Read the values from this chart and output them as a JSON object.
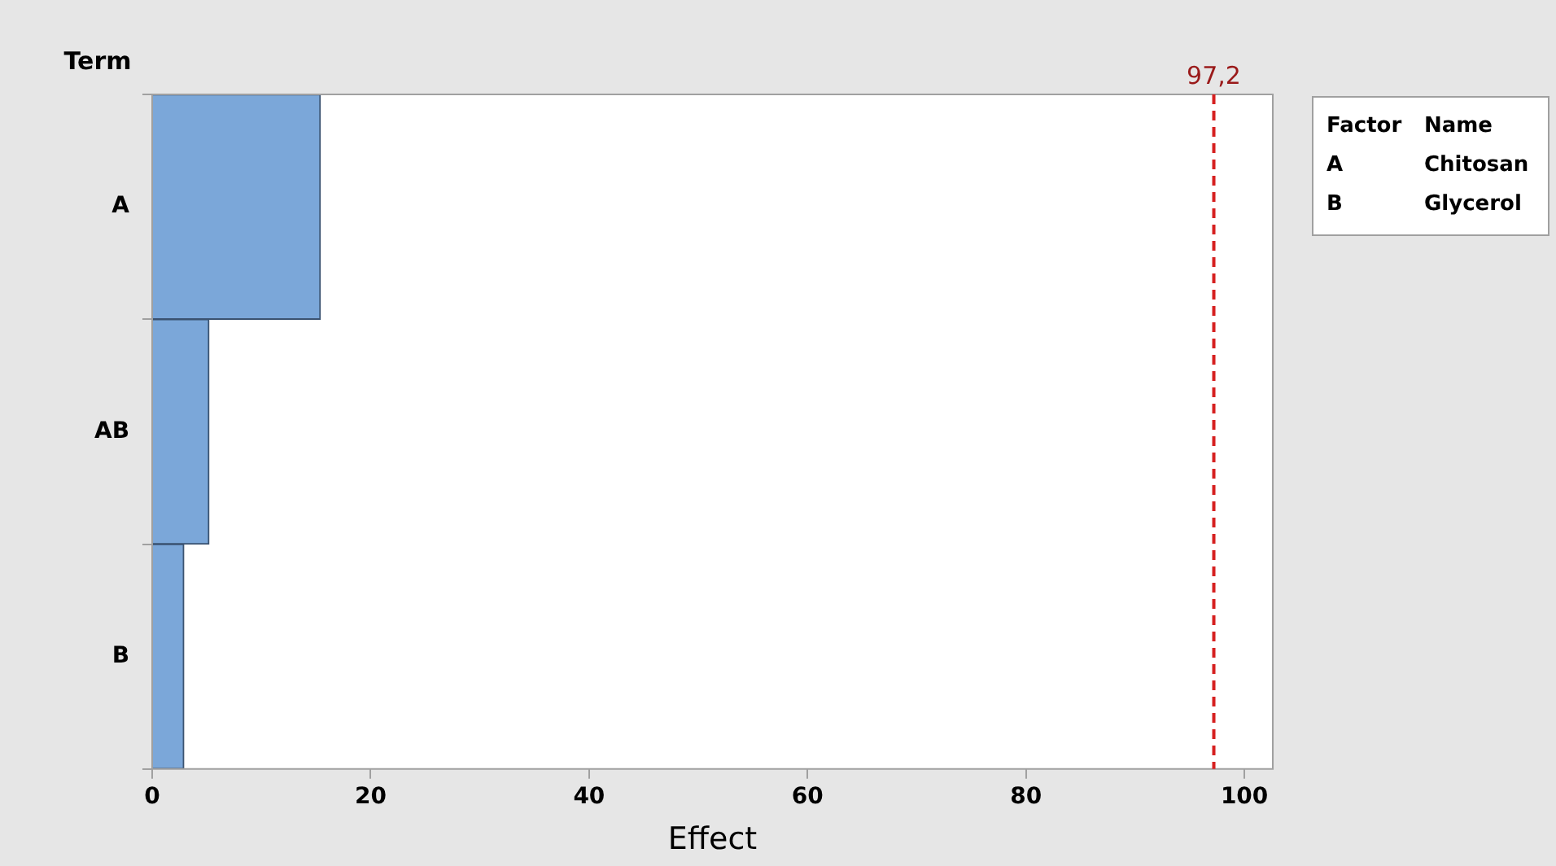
{
  "chart_data": {
    "type": "bar",
    "orientation": "horizontal",
    "xlabel": "Effect",
    "ylabel": "Term",
    "categories": [
      "A",
      "AB",
      "B"
    ],
    "values": [
      15.4,
      5.2,
      2.9
    ],
    "color": "#7ba7d9",
    "xlim": [
      0,
      102.6
    ],
    "xticks": [
      0,
      20,
      40,
      60,
      80,
      100
    ],
    "ref_lines": [
      {
        "axis": "x",
        "value": 97.2,
        "label": "97,2",
        "color": "#d62020",
        "line_style": "dashed"
      }
    ],
    "annotations": [
      "Factor",
      "Name",
      "A",
      "Chitosan",
      "B",
      "Glycerol"
    ],
    "grid": false,
    "legend": false
  }
}
